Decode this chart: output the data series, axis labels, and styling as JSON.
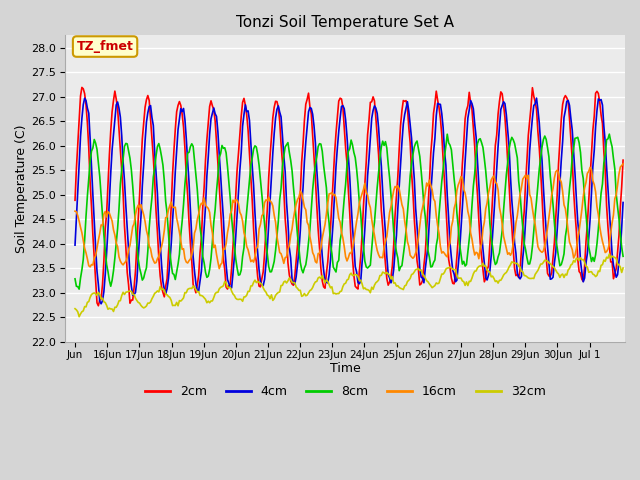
{
  "title": "Tonzi Soil Temperature Set A",
  "xlabel": "Time",
  "ylabel": "Soil Temperature (C)",
  "ylim": [
    22.0,
    28.25
  ],
  "yticks": [
    22.0,
    22.5,
    23.0,
    23.5,
    24.0,
    24.5,
    25.0,
    25.5,
    26.0,
    26.5,
    27.0,
    27.5,
    28.0
  ],
  "legend_labels": [
    "2cm",
    "4cm",
    "8cm",
    "16cm",
    "32cm"
  ],
  "line_colors": [
    "#ff0000",
    "#0000dd",
    "#00cc00",
    "#ff8800",
    "#cccc00"
  ],
  "annotation_text": "TZ_fmet",
  "annotation_color": "#cc0000",
  "annotation_bg": "#ffffcc",
  "annotation_border": "#cc9900",
  "plot_bg": "#ebebeb",
  "fig_bg": "#d5d5d5",
  "n_points": 400,
  "start_day": 15.0,
  "end_day": 32.04,
  "base_temp_2cm": 24.9,
  "base_temp_4cm": 24.85,
  "base_temp_8cm": 24.6,
  "base_temp_16cm": 24.1,
  "base_temp_32cm": 22.78,
  "trend_2cm": 0.018,
  "trend_4cm": 0.018,
  "trend_8cm": 0.02,
  "trend_16cm": 0.035,
  "trend_32cm": 0.048,
  "amp_2cm": 1.9,
  "amp_4cm": 1.82,
  "amp_8cm": 1.3,
  "amp_4cm_phase": 0.07,
  "amp_8cm_phase": 0.35,
  "amp_16cm_base": 0.55,
  "amp_16cm_trend": 0.018,
  "amp_16cm_phase": 0.75,
  "amp_32cm": 0.18,
  "period": 1.0,
  "linewidth": 1.2
}
